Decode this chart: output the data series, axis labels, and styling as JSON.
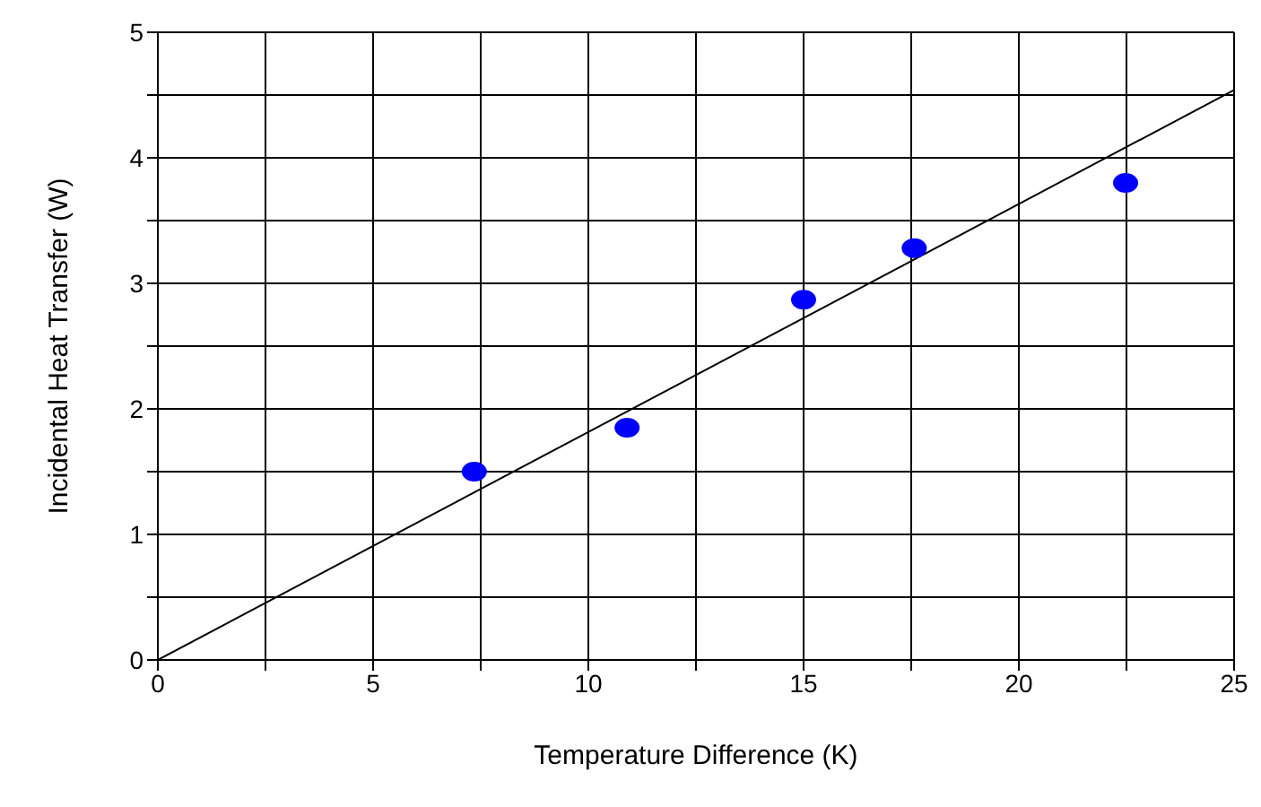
{
  "chart_data": {
    "type": "scatter",
    "xlabel": "Temperature Difference (K)",
    "ylabel": "Incidental Heat Transfer (W)",
    "xlim": [
      0,
      25
    ],
    "ylim": [
      0,
      5
    ],
    "xticks": [
      0,
      {
        "value": 2.5,
        "label": null
      },
      5,
      {
        "value": 7.5,
        "label": null
      },
      10,
      {
        "value": 12.5,
        "label": null
      },
      15,
      {
        "value": 17.5,
        "label": null
      },
      20,
      {
        "value": 22.5,
        "label": null
      },
      25
    ],
    "yticks": [
      0,
      {
        "value": 0.5,
        "label": null
      },
      1,
      {
        "value": 1.5,
        "label": null
      },
      2,
      {
        "value": 2.5,
        "label": null
      },
      3,
      {
        "value": 3.5,
        "label": null
      },
      4,
      {
        "value": 4.5,
        "label": null
      },
      5
    ],
    "grid": true,
    "legend": false,
    "marker": "circle",
    "series": [
      {
        "color": "#0000ff",
        "x": [
          7.35,
          10.9,
          15.0,
          17.57,
          22.48
        ],
        "values": [
          1.5,
          1.85,
          2.87,
          3.28,
          3.8
        ]
      },
      {
        "type": "line",
        "color": "#000000",
        "marker": "none",
        "line_style": "solid",
        "x": [
          0,
          25
        ],
        "values": [
          0,
          4.54
        ]
      }
    ]
  }
}
